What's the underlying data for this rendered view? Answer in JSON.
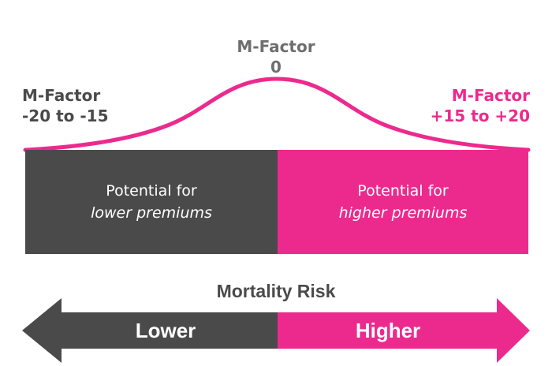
{
  "labels": {
    "left": {
      "line1": "M-Factor",
      "line2": "-20 to -15"
    },
    "center": {
      "line1": "M-Factor",
      "line2": "0"
    },
    "right": {
      "line1": "M-Factor",
      "line2": "+15 to +20"
    }
  },
  "blocks": {
    "left": {
      "line1": "Potential for",
      "line2": "lower premiums"
    },
    "right": {
      "line1": "Potential for",
      "line2": "higher premiums"
    }
  },
  "risk": {
    "title": "Mortality Risk",
    "lower": "Lower",
    "higher": "Higher"
  },
  "colors": {
    "dark": "#4a4a4a",
    "pink": "#ec2a8e",
    "center_label": "#6e6e6e"
  }
}
